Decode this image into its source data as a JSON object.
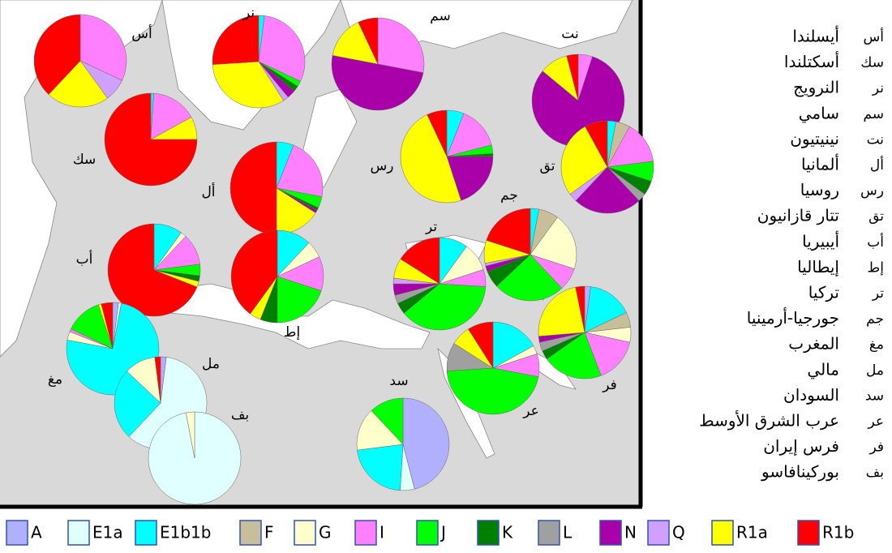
{
  "haplogroups": [
    {
      "name": "A",
      "color": "#b0b0ff"
    },
    {
      "name": "E1a",
      "color": "#e0ffff"
    },
    {
      "name": "E1b1b",
      "color": "#00ffff"
    },
    {
      "name": "F",
      "color": "#c8bf9a"
    },
    {
      "name": "G",
      "color": "#ffffcc"
    },
    {
      "name": "I",
      "color": "#ff80ff"
    },
    {
      "name": "J",
      "color": "#00ff00"
    },
    {
      "name": "K",
      "color": "#008000"
    },
    {
      "name": "L",
      "color": "#a0a0a0"
    },
    {
      "name": "N",
      "color": "#aa00aa"
    },
    {
      "name": "Q",
      "color": "#d0a0ff"
    },
    {
      "name": "R1a",
      "color": "#ffff00"
    },
    {
      "name": "R1b",
      "color": "#ff0000"
    }
  ],
  "pies": [
    {
      "abbr": "أس",
      "name": "أيسلندا",
      "values": [
        0,
        0,
        0,
        0,
        0,
        32,
        0,
        0,
        0,
        0,
        8,
        22,
        38
      ]
    },
    {
      "abbr": "سك",
      "name": "أسكتلندا",
      "values": [
        0,
        0,
        1,
        0,
        0,
        16,
        0,
        0,
        0,
        0,
        0,
        8,
        75
      ]
    },
    {
      "abbr": "نر",
      "name": "النرويج",
      "values": [
        0,
        0,
        2,
        0,
        0,
        30,
        2,
        2,
        0,
        3,
        2,
        33,
        26
      ]
    },
    {
      "abbr": "سم",
      "name": "سامي",
      "values": [
        0,
        0,
        0,
        0,
        0,
        28,
        0,
        0,
        0,
        50,
        0,
        15,
        7
      ]
    },
    {
      "abbr": "نت",
      "name": "نينيتيون",
      "values": [
        0,
        0,
        0,
        0,
        0,
        5,
        0,
        0,
        0,
        81,
        0,
        10,
        4
      ]
    },
    {
      "abbr": "أل",
      "name": "ألمانيا",
      "values": [
        0,
        0,
        6,
        0,
        0,
        22,
        4,
        1,
        0,
        1,
        0,
        16,
        50
      ]
    },
    {
      "abbr": "رس",
      "name": "روسيا",
      "values": [
        0,
        0,
        6,
        0,
        0,
        15,
        3,
        1,
        0,
        20,
        0,
        48,
        7
      ]
    },
    {
      "abbr": "تق",
      "name": "تتار قازانيون",
      "values": [
        0,
        0,
        3,
        5,
        0,
        15,
        7,
        5,
        3,
        24,
        3,
        27,
        8
      ]
    },
    {
      "abbr": "أب",
      "name": "أيبيريا",
      "values": [
        0,
        0,
        10,
        0,
        2,
        11,
        4,
        2,
        0,
        0,
        0,
        2,
        69
      ]
    },
    {
      "abbr": "إط",
      "name": "إيطاليا",
      "values": [
        0,
        0,
        12,
        0,
        6,
        12,
        20,
        6,
        0,
        0,
        0,
        4,
        40
      ]
    },
    {
      "abbr": "تر",
      "name": "تركيا",
      "values": [
        0,
        0,
        10,
        0,
        10,
        6,
        38,
        4,
        3,
        4,
        2,
        7,
        16
      ]
    },
    {
      "abbr": "جم",
      "name": "جورجيا-أرمينيا",
      "values": [
        0,
        0,
        3,
        7,
        20,
        8,
        25,
        6,
        0,
        2,
        1,
        8,
        20
      ]
    },
    {
      "abbr": "مغ",
      "name": "المغرب",
      "values": [
        2,
        1,
        75,
        0,
        3,
        1,
        13,
        0,
        0,
        0,
        0,
        1,
        4
      ]
    },
    {
      "abbr": "مل",
      "name": "مالي",
      "values": [
        2,
        60,
        25,
        0,
        11,
        0,
        0,
        0,
        0,
        0,
        0,
        0,
        2
      ]
    },
    {
      "abbr": "سد",
      "name": "السودان",
      "values": [
        46,
        5,
        22,
        0,
        15,
        0,
        12,
        0,
        0,
        0,
        0,
        0,
        0
      ]
    },
    {
      "abbr": "عر",
      "name": "عرب الشرق الأوسط",
      "values": [
        0,
        0,
        17,
        0,
        3,
        8,
        46,
        0,
        10,
        0,
        0,
        7,
        9
      ]
    },
    {
      "abbr": "فر",
      "name": "فرس إيران",
      "values": [
        2,
        0,
        15,
        5,
        5,
        15,
        20,
        3,
        3,
        2,
        0,
        22,
        3
      ]
    },
    {
      "abbr": "بف",
      "name": "بوركينافاسو",
      "values": [
        0,
        97,
        0,
        0,
        3,
        0,
        0,
        0,
        0,
        0,
        0,
        0,
        0
      ]
    }
  ]
}
